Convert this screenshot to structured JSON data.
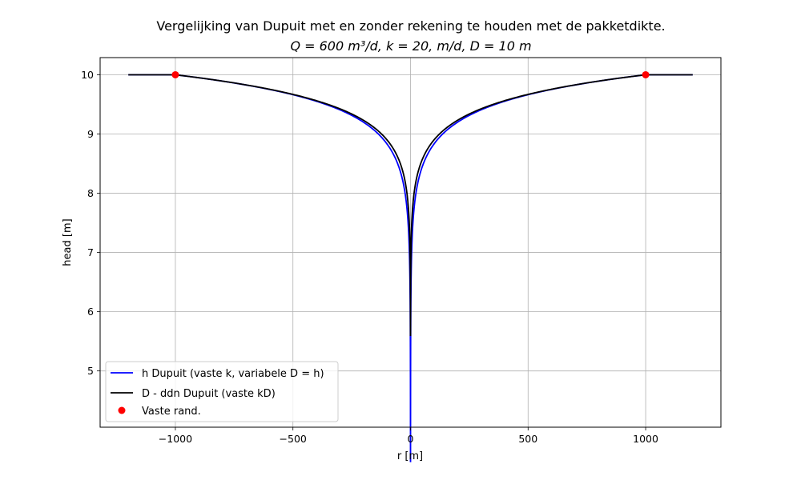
{
  "chart_data": {
    "type": "line",
    "title": "Vergelijking van Dupuit met en zonder rekening te houden met de pakketdikte.",
    "subtitle": "Q = 600 m³/d, k = 20,  m/d, D = 10 m",
    "xlabel": "r [m]",
    "ylabel": "head [m]",
    "xlim": [
      -1320,
      1320
    ],
    "ylim": [
      4.05,
      10.29
    ],
    "xticks": [
      -1000,
      -500,
      0,
      500,
      1000
    ],
    "xtick_labels": [
      "−1000",
      "−500",
      "0",
      "500",
      "1000"
    ],
    "yticks": [
      5,
      6,
      7,
      8,
      9,
      10
    ],
    "ytick_labels": [
      "5",
      "6",
      "7",
      "8",
      "9",
      "10"
    ],
    "grid": true,
    "legend_position": "lower-left",
    "model": {
      "Q": 600,
      "k": 20,
      "D": 10,
      "R": 1000,
      "r_well": 0.1,
      "r_max": 1200
    },
    "series": [
      {
        "name": "h Dupuit (vaste k, variabele D = h)",
        "color": "#0000ff",
        "kind": "line",
        "model": "unconfined"
      },
      {
        "name": "D - ddn Dupuit (vaste kD)",
        "color": "#000000",
        "kind": "line",
        "model": "confined"
      },
      {
        "name": "Vaste rand.",
        "color": "#ff0000",
        "kind": "scatter",
        "points": [
          [
            -1000,
            10
          ],
          [
            1000,
            10
          ]
        ]
      }
    ]
  }
}
